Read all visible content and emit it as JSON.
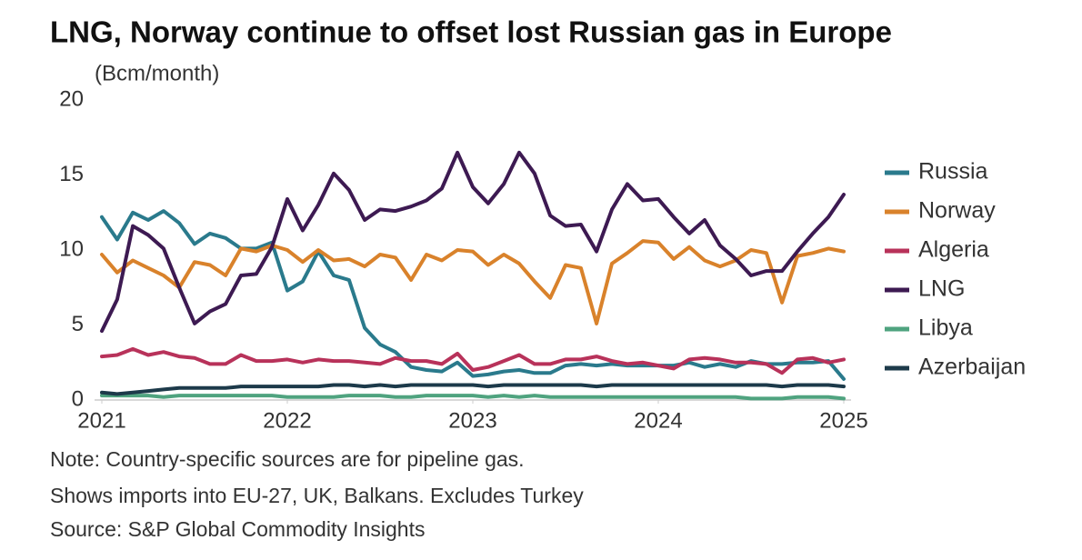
{
  "chart_data": {
    "type": "line",
    "title": "LNG, Norway continue to offset lost Russian gas in Europe",
    "y_label": "(Bcm/month)",
    "x": [
      2021,
      2021.083,
      2021.167,
      2021.25,
      2021.333,
      2021.417,
      2021.5,
      2021.583,
      2021.667,
      2021.75,
      2021.833,
      2021.917,
      2022,
      2022.083,
      2022.167,
      2022.25,
      2022.333,
      2022.417,
      2022.5,
      2022.583,
      2022.667,
      2022.75,
      2022.833,
      2022.917,
      2023,
      2023.083,
      2023.167,
      2023.25,
      2023.333,
      2023.417,
      2023.5,
      2023.583,
      2023.667,
      2023.75,
      2023.833,
      2023.917,
      2024,
      2024.083,
      2024.167,
      2024.25,
      2024.333,
      2024.417,
      2024.5,
      2024.583,
      2024.667,
      2024.75,
      2024.833,
      2024.917,
      2025
    ],
    "xlim": [
      2021,
      2025
    ],
    "xticks": [
      2021,
      2022,
      2023,
      2024,
      2025
    ],
    "ylim": [
      0,
      20
    ],
    "yticks": [
      0,
      5,
      10,
      15,
      20
    ],
    "series": [
      {
        "name": "Russia",
        "color": "#2a7a8c",
        "values": [
          12.2,
          10.7,
          12.5,
          12.0,
          12.6,
          11.8,
          10.4,
          11.1,
          10.8,
          10.1,
          10.1,
          10.5,
          7.3,
          7.9,
          9.9,
          8.3,
          8.0,
          4.8,
          3.7,
          3.2,
          2.2,
          2.0,
          1.9,
          2.5,
          1.6,
          1.7,
          1.9,
          2.0,
          1.8,
          1.8,
          2.3,
          2.4,
          2.3,
          2.4,
          2.3,
          2.3,
          2.3,
          2.3,
          2.5,
          2.2,
          2.4,
          2.2,
          2.6,
          2.4,
          2.4,
          2.5,
          2.5,
          2.6,
          1.4
        ]
      },
      {
        "name": "Norway",
        "color": "#d9822b",
        "values": [
          9.7,
          8.5,
          9.3,
          8.8,
          8.3,
          7.5,
          9.2,
          9.0,
          8.3,
          10.1,
          9.9,
          10.3,
          10.0,
          9.2,
          10.0,
          9.3,
          9.4,
          8.9,
          9.7,
          9.5,
          8.0,
          9.7,
          9.3,
          10.0,
          9.9,
          9.0,
          9.7,
          9.1,
          7.9,
          6.8,
          9.0,
          8.8,
          5.1,
          9.1,
          9.8,
          10.6,
          10.5,
          9.4,
          10.2,
          9.3,
          8.9,
          9.3,
          10.0,
          9.8,
          6.5,
          9.6,
          9.8,
          10.1,
          9.9
        ]
      },
      {
        "name": "Algeria",
        "color": "#b8325a",
        "values": [
          2.9,
          3.0,
          3.4,
          3.0,
          3.2,
          2.9,
          2.8,
          2.4,
          2.4,
          3.0,
          2.6,
          2.6,
          2.7,
          2.5,
          2.7,
          2.6,
          2.6,
          2.5,
          2.4,
          2.8,
          2.6,
          2.6,
          2.4,
          3.1,
          2.0,
          2.2,
          2.6,
          3.0,
          2.4,
          2.4,
          2.7,
          2.7,
          2.9,
          2.6,
          2.4,
          2.5,
          2.3,
          2.1,
          2.7,
          2.8,
          2.7,
          2.5,
          2.5,
          2.4,
          1.8,
          2.7,
          2.8,
          2.5,
          2.7
        ]
      },
      {
        "name": "LNG",
        "color": "#3d1a52",
        "values": [
          4.6,
          6.7,
          11.6,
          11.0,
          10.1,
          7.5,
          5.1,
          5.9,
          6.4,
          8.3,
          8.4,
          10.2,
          13.4,
          11.3,
          13.0,
          15.1,
          14.0,
          12.0,
          12.7,
          12.6,
          12.9,
          13.3,
          14.1,
          16.5,
          14.2,
          13.1,
          14.4,
          16.5,
          15.1,
          12.3,
          11.6,
          11.7,
          9.9,
          12.7,
          14.4,
          13.3,
          13.4,
          12.2,
          11.1,
          12.0,
          10.3,
          9.4,
          8.3,
          8.6,
          8.6,
          9.9,
          11.1,
          12.2,
          13.7
        ]
      },
      {
        "name": "Libya",
        "color": "#4fa37f",
        "values": [
          0.3,
          0.3,
          0.3,
          0.3,
          0.2,
          0.3,
          0.3,
          0.3,
          0.3,
          0.3,
          0.3,
          0.3,
          0.2,
          0.2,
          0.2,
          0.2,
          0.3,
          0.3,
          0.3,
          0.2,
          0.2,
          0.3,
          0.3,
          0.3,
          0.3,
          0.2,
          0.3,
          0.2,
          0.3,
          0.2,
          0.2,
          0.2,
          0.2,
          0.2,
          0.2,
          0.2,
          0.2,
          0.2,
          0.2,
          0.2,
          0.2,
          0.2,
          0.1,
          0.1,
          0.1,
          0.2,
          0.2,
          0.2,
          0.1
        ]
      },
      {
        "name": "Azerbaijan",
        "color": "#1d3a4a",
        "values": [
          0.5,
          0.4,
          0.5,
          0.6,
          0.7,
          0.8,
          0.8,
          0.8,
          0.8,
          0.9,
          0.9,
          0.9,
          0.9,
          0.9,
          0.9,
          1.0,
          1.0,
          0.9,
          1.0,
          0.9,
          1.0,
          1.0,
          1.0,
          1.0,
          1.0,
          0.9,
          1.0,
          1.0,
          1.0,
          1.0,
          1.0,
          1.0,
          0.9,
          1.0,
          1.0,
          1.0,
          1.0,
          1.0,
          1.0,
          1.0,
          1.0,
          1.0,
          1.0,
          1.0,
          0.9,
          1.0,
          1.0,
          1.0,
          0.9
        ]
      }
    ],
    "notes": [
      "Note: Country-specific sources are for pipeline gas.",
      "Shows imports into EU-27, UK, Balkans. Excludes Turkey",
      "Source: S&P Global Commodity Insights"
    ]
  }
}
